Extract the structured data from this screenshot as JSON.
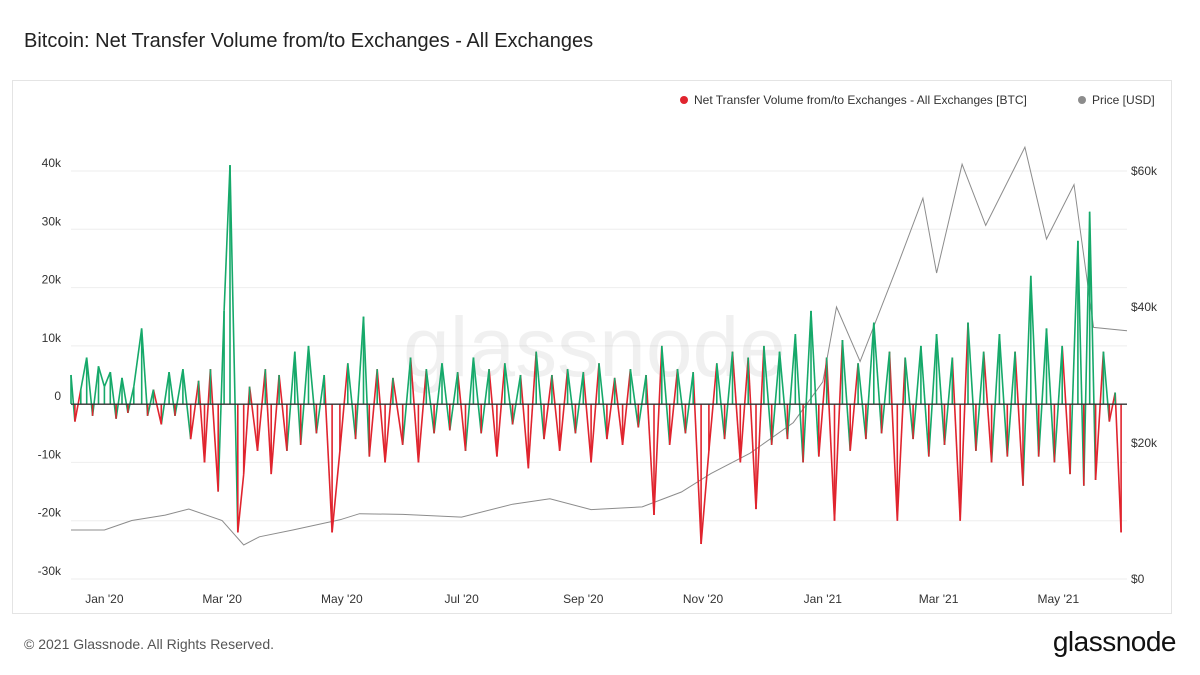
{
  "header": {
    "title": "Bitcoin: Net Transfer Volume from/to Exchanges - All Exchanges"
  },
  "footer": {
    "copyright": "© 2021 Glassnode. All Rights Reserved.",
    "logo": "glassnode"
  },
  "watermark": "glassnode",
  "colors": {
    "inflow": "#e0242e",
    "outflow": "#16a96a",
    "price": "#8c8c8c",
    "zero_line": "#333333",
    "grid": "#eeeeee"
  },
  "chart_data": {
    "type": "bar",
    "title": "Bitcoin: Net Transfer Volume from/to Exchanges - All Exchanges",
    "legend_position": "top-right",
    "grid": true,
    "x_range": [
      "2019-12-15",
      "2021-06-05"
    ],
    "x_ticks": [
      "Jan '20",
      "Mar '20",
      "May '20",
      "Jul '20",
      "Sep '20",
      "Nov '20",
      "Jan '21",
      "Mar '21",
      "May '21"
    ],
    "y_left": {
      "ticks": [
        "40k",
        "30k",
        "20k",
        "10k",
        "0",
        "-10k",
        "-20k",
        "-30k"
      ],
      "range": [
        -30000,
        40000
      ]
    },
    "y_right": {
      "ticks": [
        "$60k",
        "$40k",
        "$20k",
        "$0"
      ],
      "range": [
        0,
        60000
      ]
    },
    "series": [
      {
        "name": "Net Transfer Volume from/to Exchanges - All Exchanges [BTC]",
        "type": "bar",
        "points": [
          [
            "2019-12-15",
            5000
          ],
          [
            "2019-12-17",
            -3000
          ],
          [
            "2019-12-20",
            2500
          ],
          [
            "2019-12-23",
            8000
          ],
          [
            "2019-12-26",
            -2000
          ],
          [
            "2019-12-29",
            6500
          ],
          [
            "2020-01-01",
            3000
          ],
          [
            "2020-01-04",
            5500
          ],
          [
            "2020-01-07",
            -2500
          ],
          [
            "2020-01-10",
            4500
          ],
          [
            "2020-01-13",
            -1500
          ],
          [
            "2020-01-16",
            3000
          ],
          [
            "2020-01-20",
            13000
          ],
          [
            "2020-01-23",
            -2000
          ],
          [
            "2020-01-26",
            2500
          ],
          [
            "2020-01-30",
            -3500
          ],
          [
            "2020-02-03",
            5500
          ],
          [
            "2020-02-06",
            -2000
          ],
          [
            "2020-02-10",
            6000
          ],
          [
            "2020-02-14",
            -6000
          ],
          [
            "2020-02-18",
            4000
          ],
          [
            "2020-02-21",
            -10000
          ],
          [
            "2020-02-24",
            6000
          ],
          [
            "2020-02-28",
            -15000
          ],
          [
            "2020-03-02",
            16000
          ],
          [
            "2020-03-05",
            41000
          ],
          [
            "2020-03-09",
            -22000
          ],
          [
            "2020-03-12",
            -12000
          ],
          [
            "2020-03-15",
            3000
          ],
          [
            "2020-03-19",
            -8000
          ],
          [
            "2020-03-23",
            6000
          ],
          [
            "2020-03-26",
            -12000
          ],
          [
            "2020-03-30",
            5000
          ],
          [
            "2020-04-03",
            -8000
          ],
          [
            "2020-04-07",
            9000
          ],
          [
            "2020-04-10",
            -7000
          ],
          [
            "2020-04-14",
            10000
          ],
          [
            "2020-04-18",
            -5000
          ],
          [
            "2020-04-22",
            5000
          ],
          [
            "2020-04-26",
            -22000
          ],
          [
            "2020-04-30",
            -8000
          ],
          [
            "2020-05-04",
            7000
          ],
          [
            "2020-05-08",
            -6000
          ],
          [
            "2020-05-12",
            15000
          ],
          [
            "2020-05-15",
            -9000
          ],
          [
            "2020-05-19",
            6000
          ],
          [
            "2020-05-23",
            -10000
          ],
          [
            "2020-05-27",
            4500
          ],
          [
            "2020-06-01",
            -7000
          ],
          [
            "2020-06-05",
            8000
          ],
          [
            "2020-06-09",
            -10000
          ],
          [
            "2020-06-13",
            6000
          ],
          [
            "2020-06-17",
            -5000
          ],
          [
            "2020-06-21",
            7000
          ],
          [
            "2020-06-25",
            -4500
          ],
          [
            "2020-06-29",
            5500
          ],
          [
            "2020-07-03",
            -8000
          ],
          [
            "2020-07-07",
            8000
          ],
          [
            "2020-07-11",
            -5000
          ],
          [
            "2020-07-15",
            6000
          ],
          [
            "2020-07-19",
            -9000
          ],
          [
            "2020-07-23",
            7000
          ],
          [
            "2020-07-27",
            -3500
          ],
          [
            "2020-07-31",
            5000
          ],
          [
            "2020-08-04",
            -11000
          ],
          [
            "2020-08-08",
            9000
          ],
          [
            "2020-08-12",
            -6000
          ],
          [
            "2020-08-16",
            5000
          ],
          [
            "2020-08-20",
            -8000
          ],
          [
            "2020-08-24",
            6000
          ],
          [
            "2020-08-28",
            -5000
          ],
          [
            "2020-09-01",
            5500
          ],
          [
            "2020-09-05",
            -10000
          ],
          [
            "2020-09-09",
            7000
          ],
          [
            "2020-09-13",
            -6000
          ],
          [
            "2020-09-17",
            4500
          ],
          [
            "2020-09-21",
            -7000
          ],
          [
            "2020-09-25",
            6000
          ],
          [
            "2020-09-29",
            -4000
          ],
          [
            "2020-10-03",
            5000
          ],
          [
            "2020-10-07",
            -19000
          ],
          [
            "2020-10-11",
            10000
          ],
          [
            "2020-10-15",
            -7000
          ],
          [
            "2020-10-19",
            6000
          ],
          [
            "2020-10-23",
            -5000
          ],
          [
            "2020-10-27",
            5500
          ],
          [
            "2020-10-31",
            -24000
          ],
          [
            "2020-11-04",
            -8000
          ],
          [
            "2020-11-08",
            7000
          ],
          [
            "2020-11-12",
            -6000
          ],
          [
            "2020-11-16",
            9000
          ],
          [
            "2020-11-20",
            -10000
          ],
          [
            "2020-11-24",
            8000
          ],
          [
            "2020-11-28",
            -18000
          ],
          [
            "2020-12-02",
            10000
          ],
          [
            "2020-12-06",
            -7000
          ],
          [
            "2020-12-10",
            9000
          ],
          [
            "2020-12-14",
            -6000
          ],
          [
            "2020-12-18",
            12000
          ],
          [
            "2020-12-22",
            -10000
          ],
          [
            "2020-12-26",
            16000
          ],
          [
            "2020-12-30",
            -9000
          ],
          [
            "2021-01-03",
            8000
          ],
          [
            "2021-01-07",
            -20000
          ],
          [
            "2021-01-11",
            11000
          ],
          [
            "2021-01-15",
            -8000
          ],
          [
            "2021-01-19",
            7000
          ],
          [
            "2021-01-23",
            -6000
          ],
          [
            "2021-01-27",
            14000
          ],
          [
            "2021-01-31",
            -5000
          ],
          [
            "2021-02-04",
            9000
          ],
          [
            "2021-02-08",
            -20000
          ],
          [
            "2021-02-12",
            8000
          ],
          [
            "2021-02-16",
            -6000
          ],
          [
            "2021-02-20",
            10000
          ],
          [
            "2021-02-24",
            -9000
          ],
          [
            "2021-02-28",
            12000
          ],
          [
            "2021-03-04",
            -7000
          ],
          [
            "2021-03-08",
            8000
          ],
          [
            "2021-03-12",
            -20000
          ],
          [
            "2021-03-16",
            14000
          ],
          [
            "2021-03-20",
            -8000
          ],
          [
            "2021-03-24",
            9000
          ],
          [
            "2021-03-28",
            -10000
          ],
          [
            "2021-04-01",
            12000
          ],
          [
            "2021-04-05",
            -9000
          ],
          [
            "2021-04-09",
            9000
          ],
          [
            "2021-04-13",
            -14000
          ],
          [
            "2021-04-17",
            22000
          ],
          [
            "2021-04-21",
            -9000
          ],
          [
            "2021-04-25",
            13000
          ],
          [
            "2021-04-29",
            -10000
          ],
          [
            "2021-05-03",
            10000
          ],
          [
            "2021-05-07",
            -12000
          ],
          [
            "2021-05-11",
            28000
          ],
          [
            "2021-05-14",
            -14000
          ],
          [
            "2021-05-17",
            33000
          ],
          [
            "2021-05-20",
            -13000
          ],
          [
            "2021-05-24",
            9000
          ],
          [
            "2021-05-27",
            -3000
          ],
          [
            "2021-05-30",
            2000
          ],
          [
            "2021-06-02",
            -22000
          ]
        ]
      },
      {
        "name": "Price [USD]",
        "type": "line",
        "points": [
          [
            "2019-12-15",
            7200
          ],
          [
            "2020-01-01",
            7200
          ],
          [
            "2020-01-15",
            8600
          ],
          [
            "2020-02-01",
            9400
          ],
          [
            "2020-02-13",
            10300
          ],
          [
            "2020-03-01",
            8600
          ],
          [
            "2020-03-12",
            5000
          ],
          [
            "2020-03-20",
            6200
          ],
          [
            "2020-04-06",
            7200
          ],
          [
            "2020-04-30",
            8700
          ],
          [
            "2020-05-10",
            9600
          ],
          [
            "2020-06-01",
            9500
          ],
          [
            "2020-07-01",
            9100
          ],
          [
            "2020-07-27",
            11000
          ],
          [
            "2020-08-15",
            11800
          ],
          [
            "2020-09-05",
            10200
          ],
          [
            "2020-10-01",
            10600
          ],
          [
            "2020-10-21",
            12800
          ],
          [
            "2020-11-05",
            15500
          ],
          [
            "2020-11-25",
            18500
          ],
          [
            "2020-12-17",
            23000
          ],
          [
            "2021-01-01",
            29000
          ],
          [
            "2021-01-08",
            40000
          ],
          [
            "2021-01-20",
            32000
          ],
          [
            "2021-02-08",
            46000
          ],
          [
            "2021-02-21",
            56000
          ],
          [
            "2021-02-28",
            45000
          ],
          [
            "2021-03-13",
            61000
          ],
          [
            "2021-03-25",
            52000
          ],
          [
            "2021-04-14",
            63500
          ],
          [
            "2021-04-25",
            50000
          ],
          [
            "2021-05-09",
            58000
          ],
          [
            "2021-05-19",
            37000
          ],
          [
            "2021-06-05",
            36500
          ]
        ]
      }
    ]
  }
}
